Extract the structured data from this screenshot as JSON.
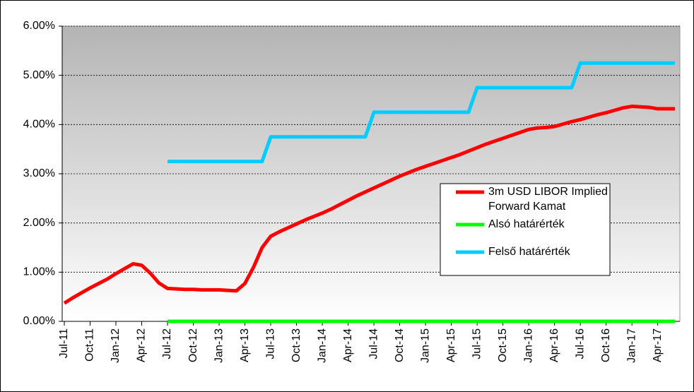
{
  "chart_data": {
    "type": "line",
    "categories": [
      "Jul-11",
      null,
      null,
      "Oct-11",
      null,
      null,
      "Jan-12",
      null,
      null,
      "Apr-12",
      null,
      null,
      "Jul-12",
      null,
      null,
      "Oct-12",
      null,
      null,
      "Jan-13",
      null,
      null,
      "Apr-13",
      null,
      null,
      "Jul-13",
      null,
      null,
      "Oct-13",
      null,
      null,
      "Jan-14",
      null,
      null,
      "Apr-14",
      null,
      null,
      "Jul-14",
      null,
      null,
      "Oct-14",
      null,
      null,
      "Jan-15",
      null,
      null,
      "Apr-15",
      null,
      null,
      "Jul-15",
      null,
      null,
      "Oct-15",
      null,
      null,
      "Jan-16",
      null,
      null,
      "Apr-16",
      null,
      null,
      "Jul-16",
      null,
      null,
      "Oct-16",
      null,
      null,
      "Jan-17",
      null,
      null,
      "Apr-17",
      null,
      null
    ],
    "series": [
      {
        "name": "3m USD LIBOR Implied Forward Kamat",
        "color": "#ff0000",
        "values": [
          0.37,
          0.48,
          0.58,
          0.68,
          0.77,
          0.86,
          0.97,
          1.07,
          1.17,
          1.14,
          0.98,
          0.78,
          0.67,
          0.66,
          0.65,
          0.65,
          0.64,
          0.64,
          0.64,
          0.63,
          0.62,
          0.77,
          1.1,
          1.5,
          1.73,
          1.82,
          1.9,
          1.98,
          2.06,
          2.13,
          2.2,
          2.28,
          2.37,
          2.46,
          2.55,
          2.63,
          2.71,
          2.79,
          2.87,
          2.95,
          3.02,
          3.09,
          3.15,
          3.21,
          3.27,
          3.33,
          3.39,
          3.46,
          3.53,
          3.6,
          3.66,
          3.72,
          3.78,
          3.84,
          3.9,
          3.93,
          3.94,
          3.96,
          4.01,
          4.06,
          4.1,
          4.15,
          4.2,
          4.24,
          4.29,
          4.34,
          4.37,
          4.36,
          4.35,
          4.32,
          4.32,
          4.32
        ]
      },
      {
        "name": "Alsó határérték",
        "color": "#00ff00",
        "values": [
          null,
          null,
          null,
          null,
          null,
          null,
          null,
          null,
          null,
          null,
          null,
          null,
          0,
          0,
          0,
          0,
          0,
          0,
          0,
          0,
          0,
          0,
          0,
          0,
          0,
          0,
          0,
          0,
          0,
          0,
          0,
          0,
          0,
          0,
          0,
          0,
          0,
          0,
          0,
          0,
          0,
          0,
          0,
          0,
          0,
          0,
          0,
          0,
          0,
          0,
          0,
          0,
          0,
          0,
          0,
          0,
          0,
          0,
          0,
          0,
          0,
          0,
          0,
          0,
          0,
          0,
          0,
          0,
          0,
          0,
          0,
          0
        ]
      },
      {
        "name": "Felső határérték",
        "color": "#00ccff",
        "values": [
          null,
          null,
          null,
          null,
          null,
          null,
          null,
          null,
          null,
          null,
          null,
          null,
          3.25,
          3.25,
          3.25,
          3.25,
          3.25,
          3.25,
          3.25,
          3.25,
          3.25,
          3.25,
          3.25,
          3.25,
          3.75,
          3.75,
          3.75,
          3.75,
          3.75,
          3.75,
          3.75,
          3.75,
          3.75,
          3.75,
          3.75,
          3.75,
          4.25,
          4.25,
          4.25,
          4.25,
          4.25,
          4.25,
          4.25,
          4.25,
          4.25,
          4.25,
          4.25,
          4.25,
          4.75,
          4.75,
          4.75,
          4.75,
          4.75,
          4.75,
          4.75,
          4.75,
          4.75,
          4.75,
          4.75,
          4.75,
          5.25,
          5.25,
          5.25,
          5.25,
          5.25,
          5.25,
          5.25,
          5.25,
          5.25,
          5.25,
          5.25,
          5.25
        ]
      }
    ],
    "ylim": [
      0,
      6
    ],
    "yticks": [
      {
        "value": 0,
        "label": "0.00%"
      },
      {
        "value": 1,
        "label": "1.00%"
      },
      {
        "value": 2,
        "label": "2.00%"
      },
      {
        "value": 3,
        "label": "3.00%"
      },
      {
        "value": 4,
        "label": "4.00%"
      },
      {
        "value": 5,
        "label": "5.00%"
      },
      {
        "value": 6,
        "label": "6.00%"
      }
    ],
    "grid": true
  }
}
